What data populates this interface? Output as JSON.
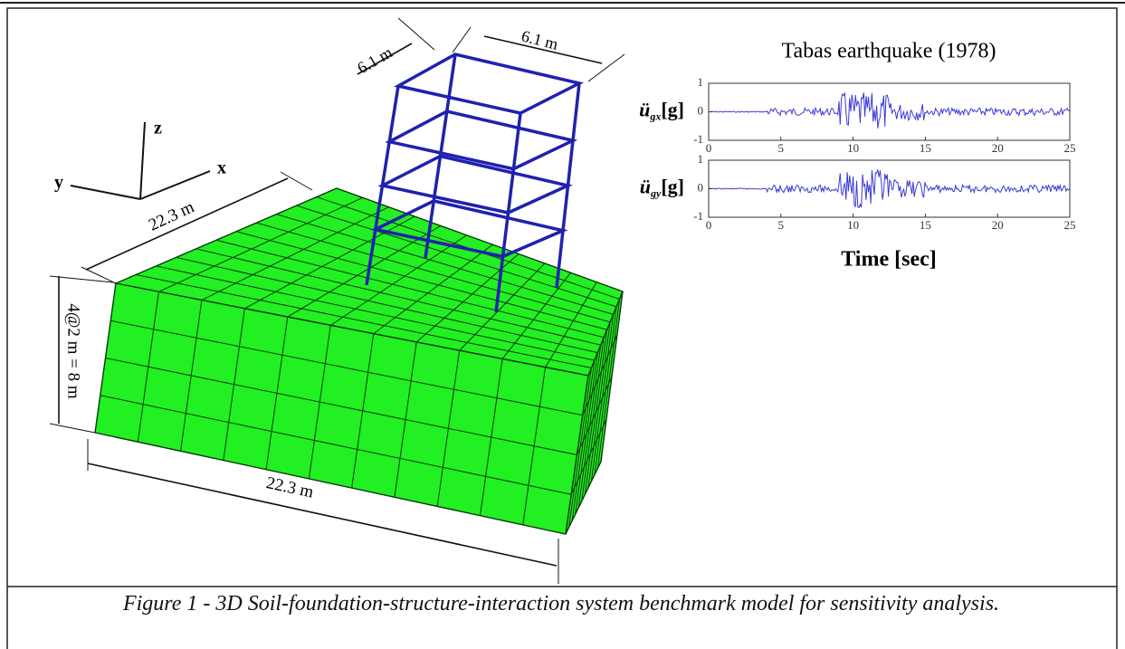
{
  "axes_labels": {
    "z": "z",
    "y": "y",
    "x": "x"
  },
  "dimensions": {
    "bay_width_left": "6.1 m",
    "bay_width_right": "6.1 m",
    "soil_width": "22.3 m",
    "soil_length": "22.3 m",
    "soil_depth": "4@2 m = 8 m"
  },
  "record": {
    "title": "Tabas earthquake (1978)",
    "x_label": "Time [sec]",
    "plots": [
      {
        "symbol": "ü",
        "subscript": "gx",
        "unit": "[g]",
        "xlim": [
          0,
          25
        ],
        "ylim": [
          -1,
          1
        ],
        "xticks": [
          0,
          5,
          10,
          15,
          20,
          25
        ],
        "yticks": [
          -1,
          0,
          1
        ],
        "color": "#3b3bd6"
      },
      {
        "symbol": "ü",
        "subscript": "gy",
        "unit": "[g]",
        "xlim": [
          0,
          25
        ],
        "ylim": [
          -1,
          1
        ],
        "xticks": [
          0,
          5,
          10,
          15,
          20,
          25
        ],
        "yticks": [
          -1,
          0,
          1
        ],
        "color": "#3b3bd6"
      }
    ]
  },
  "caption": "Figure 1 - 3D Soil-foundation-structure-interaction system benchmark model for sensitivity analysis."
}
